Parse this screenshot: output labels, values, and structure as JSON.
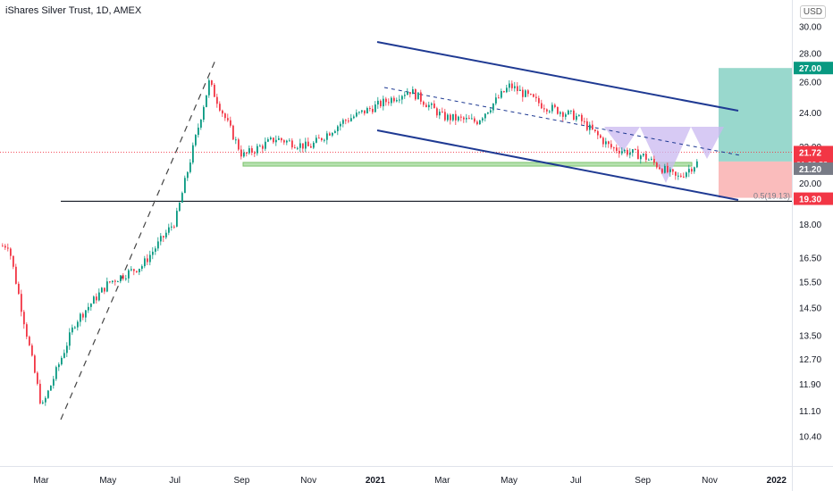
{
  "header": {
    "title": "iShares Silver Trust, 1D, AMEX",
    "currency": "USD"
  },
  "chart_data": {
    "type": "candlestick",
    "y_scale": "log",
    "ylim": [
      10.1,
      30.6
    ],
    "y_ticks": [
      "30.00",
      "28.00",
      "26.00",
      "24.00",
      "22.00",
      "20.00",
      "18.00",
      "16.50",
      "15.50",
      "14.50",
      "13.50",
      "12.70",
      "11.90",
      "11.10",
      "10.40"
    ],
    "x_ticks": [
      "Mar",
      "May",
      "Jul",
      "Sep",
      "Nov",
      "2021",
      "Mar",
      "May",
      "Jul",
      "Sep",
      "Nov",
      "2022"
    ],
    "price_labels": [
      {
        "text": "27.00",
        "color": "#089981"
      },
      {
        "text": "21.72",
        "color": "#f23645"
      },
      {
        "text": "01:29:52",
        "color": "#f23645"
      },
      {
        "text": "21.20",
        "color": "#787b86"
      },
      {
        "text": "19.30",
        "color": "#f23645"
      }
    ],
    "last_price": 21.72,
    "fib_label": "0.5(19.13)",
    "horizontal_level": 19.13,
    "support_zone": [
      20.95,
      21.15
    ],
    "position": {
      "target": 27.0,
      "entry": 21.2,
      "stop": 19.3
    },
    "price_path": [
      {
        "x": "Jan 2020",
        "y": 16.8
      },
      {
        "x": "Feb 2020",
        "y": 17.1
      },
      {
        "x": "Mar 2020",
        "y": 11.2
      },
      {
        "x": "Apr 2020",
        "y": 14.0
      },
      {
        "x": "May 2020",
        "y": 15.5
      },
      {
        "x": "Jun 2020",
        "y": 16.2
      },
      {
        "x": "Jul 2020",
        "y": 18.2
      },
      {
        "x": "Aug 2020",
        "y": 26.0
      },
      {
        "x": "Sep 2020",
        "y": 21.5
      },
      {
        "x": "Oct 2020",
        "y": 22.5
      },
      {
        "x": "Nov 2020",
        "y": 22.0
      },
      {
        "x": "Dec 2020",
        "y": 23.5
      },
      {
        "x": "Feb 2021",
        "y": 25.5
      },
      {
        "x": "Mar 2021",
        "y": 23.8
      },
      {
        "x": "Apr 2021",
        "y": 23.5
      },
      {
        "x": "May 2021",
        "y": 25.8
      },
      {
        "x": "Jun 2021",
        "y": 24.5
      },
      {
        "x": "Jul 2021",
        "y": 23.8
      },
      {
        "x": "Aug 2021",
        "y": 22.0
      },
      {
        "x": "Sep 2021",
        "y": 21.5
      },
      {
        "x": "Oct 2021",
        "y": 20.3
      },
      {
        "x": "Nov 2021",
        "y": 21.7
      }
    ],
    "colors": {
      "up": "#089981",
      "down": "#f23645",
      "channel": "#1f3a93",
      "target_zone": "#8ed4c8",
      "stop_zone": "#f9b5b5",
      "pattern": "#c9b8f0"
    }
  }
}
